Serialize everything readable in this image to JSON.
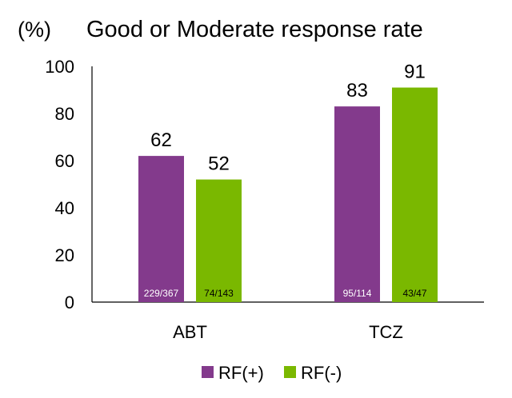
{
  "chart_data": {
    "type": "bar",
    "title": "Good or Moderate response rate",
    "ylabel": "(%)",
    "xlabel": "",
    "categories": [
      "ABT",
      "TCZ"
    ],
    "ylim": [
      0,
      100
    ],
    "yticks": [
      "0",
      "20",
      "40",
      "60",
      "80",
      "100"
    ],
    "grid": false,
    "legend_position": "bottom",
    "series": [
      {
        "name": "RF(+)",
        "color": "#833a8c",
        "values": [
          62,
          83
        ],
        "counts": [
          "229/367",
          "95/114"
        ],
        "count_label_color": "#ffffff"
      },
      {
        "name": "RF(-)",
        "color": "#7ab800",
        "values": [
          52,
          91
        ],
        "counts": [
          "74/143",
          "43/47"
        ],
        "count_label_color": "#000000"
      }
    ]
  }
}
